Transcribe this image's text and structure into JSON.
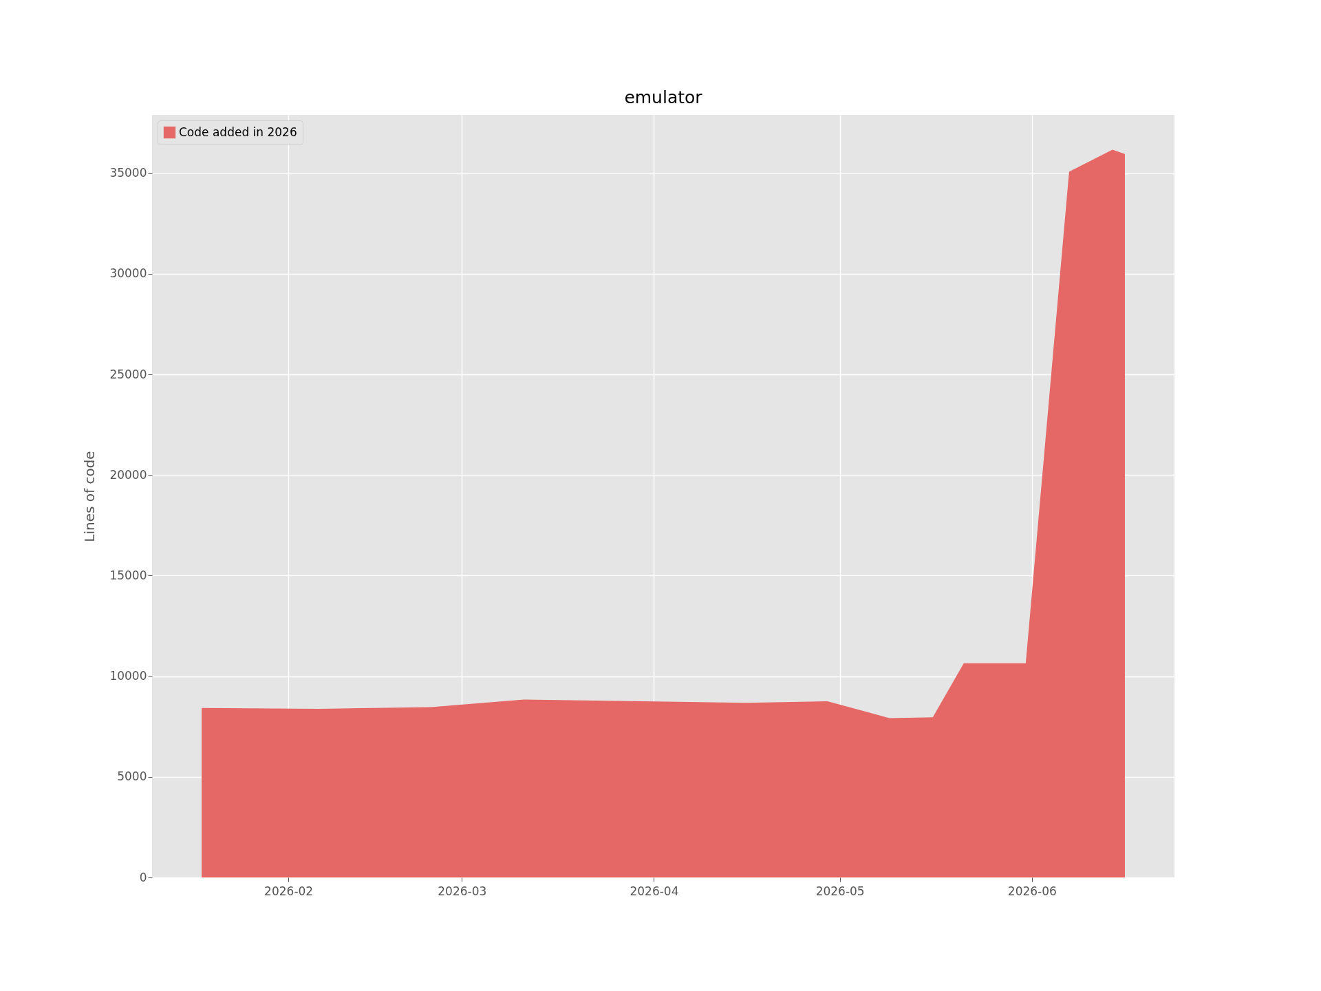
{
  "chart_data": {
    "type": "area",
    "title": "emulator",
    "ylabel": "Lines of code",
    "x": [
      "2026-01-18",
      "2026-02-06",
      "2026-02-24",
      "2026-03-11",
      "2026-04-16",
      "2026-04-29",
      "2026-05-09",
      "2026-05-16",
      "2026-05-21",
      "2026-05-31",
      "2026-06-07",
      "2026-06-14",
      "2026-06-16"
    ],
    "series": [
      {
        "name": "Code added in 2026",
        "color": "#e66866",
        "values": [
          8420,
          8380,
          8470,
          8840,
          8680,
          8760,
          7920,
          7960,
          10650,
          10650,
          35080,
          36170,
          35960
        ]
      }
    ],
    "xlim": [
      "2026-01-10",
      "2026-06-24"
    ],
    "xticks": [
      "2026-02",
      "2026-03",
      "2026-04",
      "2026-05",
      "2026-06"
    ],
    "ylim": [
      0,
      37900
    ],
    "yticks": [
      0,
      5000,
      10000,
      15000,
      20000,
      25000,
      30000,
      35000
    ],
    "grid": true,
    "legend": "top left"
  }
}
